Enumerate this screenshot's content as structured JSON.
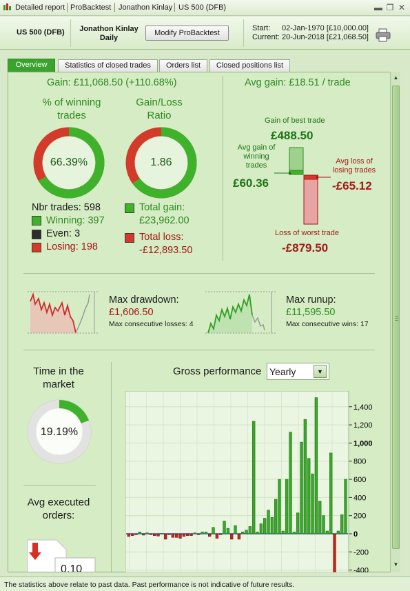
{
  "window": {
    "breadcrumbs": [
      "Detailed report",
      "ProBacktest",
      "Jonathon Kinlay",
      "US 500 (DFB)"
    ],
    "buttons": {
      "minimize": "▬",
      "restore": "❐",
      "close": "✕"
    }
  },
  "header": {
    "symbol": "US 500 (DFB)",
    "author": "Jonathon Kinlay",
    "timeframe": "Daily",
    "modify_button": "Modify ProBacktest",
    "start_label": "Start:",
    "start_value": "02-Jan-1970  [£10,000.00]",
    "current_label": "Current:",
    "current_value": "20-Jun-2018  [£21,068.50]",
    "print_icon": "printer-icon"
  },
  "tabs": [
    "Overview",
    "Statistics of closed trades",
    "Orders list",
    "Closed positions list"
  ],
  "gain": {
    "title": "Gain: £11,068.50 (+110.68%)",
    "win_title": "% of winning trades",
    "win_value": "66.39%",
    "win_fraction": 0.6639,
    "ratio_title": "Gain/Loss Ratio",
    "ratio_value": "1.86",
    "ratio_fraction": 0.65,
    "nbr_trades": "Nbr trades: 598",
    "winning": "Winning: 397",
    "even": "Even: 3",
    "losing": "Losing: 198",
    "total_gain_label": "Total gain:",
    "total_gain_value": "£23,962.00",
    "total_loss_label": "Total loss:",
    "total_loss_value": "-£12,893.50"
  },
  "avg": {
    "title": "Avg gain: £18.51 / trade",
    "best_label": "Gain of best trade",
    "best_value": "£488.50",
    "avg_win_label": "Avg gain of winning trades",
    "avg_win_value": "£60.36",
    "avg_loss_label": "Avg loss of losing trades",
    "avg_loss_value": "-£65.12",
    "worst_label": "Loss of worst trade",
    "worst_value": "-£879.50"
  },
  "drawdown": {
    "label": "Max drawdown:",
    "value": "£1,606.50",
    "sub": "Max consecutive losses: 4"
  },
  "runup": {
    "label": "Max runup:",
    "value": "£11,595.50",
    "sub": "Max consecutive wins: 17"
  },
  "market": {
    "title": "Time in the market",
    "value": "19.19%",
    "fraction": 0.1919
  },
  "orders": {
    "title": "Avg executed orders:",
    "value": "0.10"
  },
  "performance": {
    "title": "Gross performance",
    "period": "Yearly"
  },
  "chart_data": {
    "type": "bar",
    "title": "Gross performance",
    "ylim": [
      -400,
      1600
    ],
    "yticks": [
      "1,400",
      "1,200",
      "1,000",
      "800",
      "600",
      "400",
      "200",
      "0",
      "-200",
      "-400"
    ],
    "values": [
      -30,
      -20,
      -10,
      20,
      -15,
      10,
      -10,
      -20,
      -25,
      5,
      -60,
      -10,
      -40,
      -40,
      -50,
      -30,
      -20,
      -20,
      10,
      -10,
      20,
      20,
      -30,
      70,
      -50,
      -10,
      140,
      60,
      -60,
      90,
      -60,
      20,
      40,
      80,
      1240,
      20,
      110,
      170,
      260,
      180,
      380,
      600,
      30,
      600,
      1120,
      20,
      230,
      1010,
      1260,
      830,
      660,
      1500,
      360,
      200,
      30,
      890,
      -460,
      30,
      210,
      600
    ]
  },
  "footer": "The statistics above relate to past data. Past performance is not indicative of future results."
}
